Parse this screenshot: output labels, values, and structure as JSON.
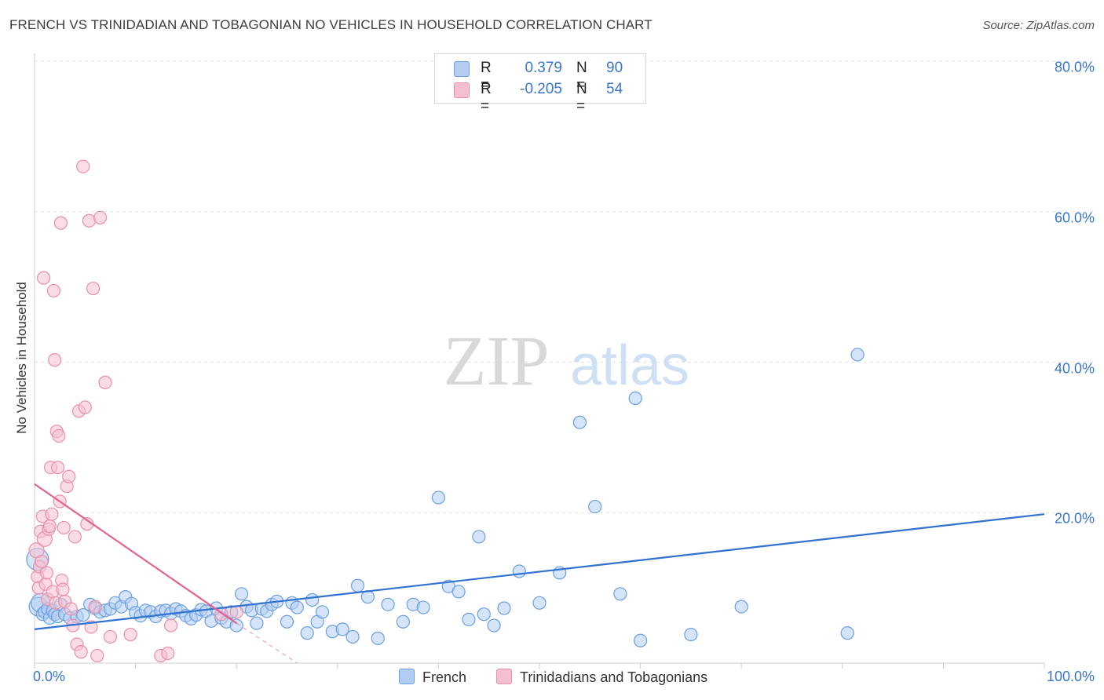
{
  "chart_data": {
    "type": "scatter",
    "title": "FRENCH VS TRINIDADIAN AND TOBAGONIAN NO VEHICLES IN HOUSEHOLD CORRELATION CHART",
    "source": "Source: ZipAtlas.com",
    "ylabel": "No Vehicles in Household",
    "xlim": [
      0,
      100
    ],
    "ylim": [
      0,
      80
    ],
    "x_tick_labels": [
      "0.0%",
      "100.0%"
    ],
    "y_ticks": [
      20,
      40,
      60,
      80
    ],
    "y_tick_labels": [
      "20.0%",
      "40.0%",
      "60.0%",
      "80.0%"
    ],
    "grid": true,
    "watermark": {
      "zip": "ZIP",
      "atlas": "atlas"
    },
    "legend_stats": [
      {
        "r_label": "R =",
        "r_value": "0.379",
        "n_label": "N =",
        "n_value": "90"
      },
      {
        "r_label": "R =",
        "r_value": "-0.205",
        "n_label": "N =",
        "n_value": "54"
      }
    ],
    "series": [
      {
        "name": "French",
        "color": "#6a9fe0",
        "fill": "#b3cdf2",
        "trend": {
          "x": [
            0,
            100
          ],
          "y": [
            4.5,
            19.8
          ],
          "color": "#2f72d0"
        },
        "points": [
          [
            0.3,
            13.8
          ],
          [
            0.4,
            7.5
          ],
          [
            0.6,
            8.0
          ],
          [
            0.8,
            6.5
          ],
          [
            1.0,
            6.8
          ],
          [
            1.3,
            7.2
          ],
          [
            1.5,
            6.0
          ],
          [
            1.8,
            7.0
          ],
          [
            2.0,
            6.5
          ],
          [
            2.3,
            6.2
          ],
          [
            2.6,
            7.8
          ],
          [
            3.0,
            6.5
          ],
          [
            3.5,
            6.0
          ],
          [
            4.2,
            6.2
          ],
          [
            4.8,
            6.4
          ],
          [
            5.5,
            7.8
          ],
          [
            6.0,
            7.3
          ],
          [
            6.5,
            6.8
          ],
          [
            7.0,
            7.0
          ],
          [
            7.5,
            7.2
          ],
          [
            8.0,
            8.0
          ],
          [
            8.6,
            7.5
          ],
          [
            9.0,
            8.8
          ],
          [
            9.6,
            7.9
          ],
          [
            10.0,
            6.7
          ],
          [
            10.5,
            6.3
          ],
          [
            11.0,
            7.0
          ],
          [
            11.5,
            6.8
          ],
          [
            12.0,
            6.2
          ],
          [
            12.5,
            6.9
          ],
          [
            13.0,
            7.0
          ],
          [
            13.5,
            6.6
          ],
          [
            14.0,
            7.2
          ],
          [
            14.5,
            6.9
          ],
          [
            15.0,
            6.3
          ],
          [
            15.5,
            5.9
          ],
          [
            16.0,
            6.4
          ],
          [
            16.5,
            7.1
          ],
          [
            17.0,
            6.9
          ],
          [
            17.5,
            5.6
          ],
          [
            18.0,
            7.3
          ],
          [
            18.5,
            6.0
          ],
          [
            19.0,
            5.5
          ],
          [
            19.5,
            6.8
          ],
          [
            20.0,
            5.0
          ],
          [
            20.5,
            9.2
          ],
          [
            21.0,
            7.5
          ],
          [
            21.5,
            7.0
          ],
          [
            22.0,
            5.3
          ],
          [
            22.5,
            7.2
          ],
          [
            23.0,
            6.9
          ],
          [
            23.5,
            7.8
          ],
          [
            24.0,
            8.2
          ],
          [
            25.0,
            5.5
          ],
          [
            25.5,
            8.0
          ],
          [
            26.0,
            7.4
          ],
          [
            27.0,
            4.0
          ],
          [
            27.5,
            8.4
          ],
          [
            28.0,
            5.5
          ],
          [
            28.5,
            6.8
          ],
          [
            29.5,
            4.2
          ],
          [
            30.5,
            4.5
          ],
          [
            31.5,
            3.5
          ],
          [
            32.0,
            10.3
          ],
          [
            33.0,
            8.8
          ],
          [
            34.0,
            3.3
          ],
          [
            35.0,
            7.8
          ],
          [
            36.5,
            5.5
          ],
          [
            37.5,
            7.8
          ],
          [
            38.5,
            7.4
          ],
          [
            40.0,
            22.0
          ],
          [
            41.0,
            10.2
          ],
          [
            42.0,
            9.5
          ],
          [
            43.0,
            5.8
          ],
          [
            44.0,
            16.8
          ],
          [
            44.5,
            6.5
          ],
          [
            45.5,
            5.0
          ],
          [
            46.5,
            7.3
          ],
          [
            48.0,
            12.2
          ],
          [
            50.0,
            8.0
          ],
          [
            52.0,
            12.0
          ],
          [
            54.0,
            32.0
          ],
          [
            55.5,
            20.8
          ],
          [
            58.0,
            9.2
          ],
          [
            59.5,
            35.2
          ],
          [
            60.0,
            3.0
          ],
          [
            65.0,
            3.8
          ],
          [
            70.0,
            7.5
          ],
          [
            80.5,
            4.0
          ],
          [
            81.5,
            41.0
          ]
        ]
      },
      {
        "name": "Trinidadians and Tobagonians",
        "color": "#e98fab",
        "fill": "#f6bfd0",
        "trend": {
          "x": [
            0,
            20
          ],
          "y": [
            23.8,
            5.3
          ],
          "color": "#e3628e",
          "dash_to": [
            26,
            0
          ]
        },
        "points": [
          [
            0.2,
            15.0
          ],
          [
            0.3,
            11.5
          ],
          [
            0.4,
            10.0
          ],
          [
            0.5,
            12.8
          ],
          [
            0.6,
            17.5
          ],
          [
            0.7,
            13.5
          ],
          [
            0.8,
            19.5
          ],
          [
            0.9,
            51.2
          ],
          [
            1.0,
            16.5
          ],
          [
            1.1,
            10.5
          ],
          [
            1.2,
            12.0
          ],
          [
            1.3,
            8.5
          ],
          [
            1.4,
            17.8
          ],
          [
            1.5,
            18.2
          ],
          [
            1.6,
            26.0
          ],
          [
            1.7,
            19.8
          ],
          [
            1.8,
            9.5
          ],
          [
            1.9,
            49.5
          ],
          [
            2.0,
            40.3
          ],
          [
            2.1,
            8.0
          ],
          [
            2.2,
            30.8
          ],
          [
            2.3,
            26.0
          ],
          [
            2.4,
            30.2
          ],
          [
            2.5,
            21.5
          ],
          [
            2.6,
            58.5
          ],
          [
            2.7,
            11.0
          ],
          [
            2.8,
            9.8
          ],
          [
            2.9,
            18.0
          ],
          [
            3.0,
            8.2
          ],
          [
            3.2,
            23.5
          ],
          [
            3.4,
            24.8
          ],
          [
            3.6,
            7.2
          ],
          [
            3.8,
            5.0
          ],
          [
            4.0,
            16.8
          ],
          [
            4.2,
            2.5
          ],
          [
            4.4,
            33.5
          ],
          [
            4.6,
            1.5
          ],
          [
            4.8,
            66.0
          ],
          [
            5.0,
            34.0
          ],
          [
            5.2,
            18.5
          ],
          [
            5.4,
            58.8
          ],
          [
            5.6,
            4.8
          ],
          [
            5.8,
            49.8
          ],
          [
            6.0,
            7.5
          ],
          [
            6.2,
            1.0
          ],
          [
            6.5,
            59.2
          ],
          [
            7.0,
            37.3
          ],
          [
            7.5,
            3.5
          ],
          [
            9.5,
            3.8
          ],
          [
            12.5,
            1.0
          ],
          [
            13.2,
            1.3
          ],
          [
            13.5,
            5.0
          ],
          [
            18.5,
            6.5
          ],
          [
            20.0,
            6.8
          ]
        ]
      }
    ]
  }
}
